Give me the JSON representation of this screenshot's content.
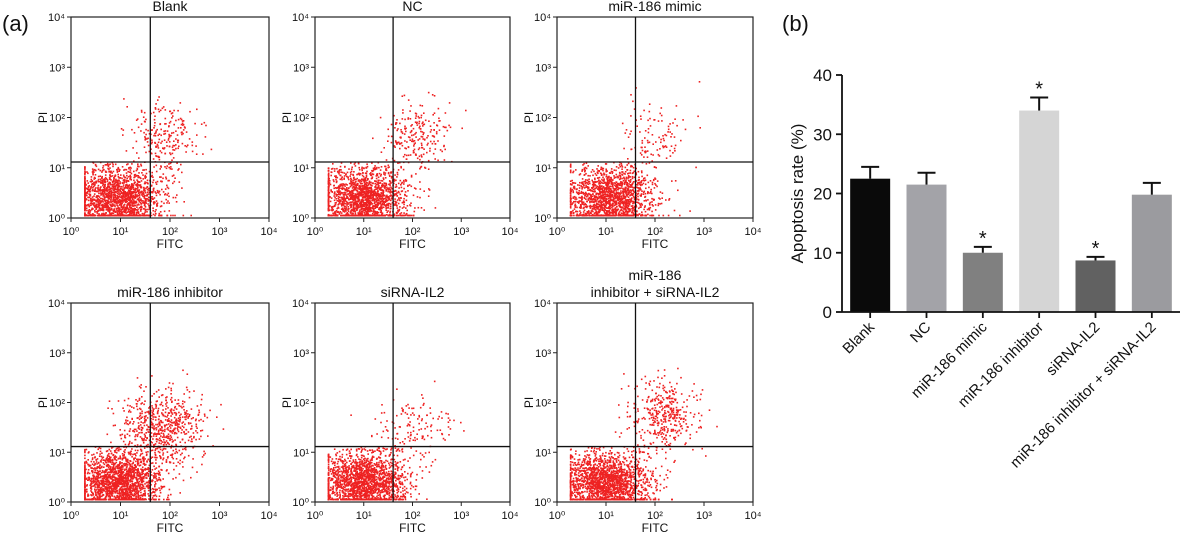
{
  "panel_a_label": "(a)",
  "panel_b_label": "(b)",
  "chart_data": [
    {
      "type": "scatter",
      "scale": "log",
      "title_lines": [
        "Blank"
      ],
      "xlabel": "FITC",
      "ylabel": "PI",
      "xlim": [
        1,
        10000
      ],
      "ylim": [
        1,
        10000
      ],
      "x_ticks": [
        1,
        10,
        100,
        1000,
        10000
      ],
      "y_ticks": [
        1,
        10,
        100,
        1000,
        10000
      ],
      "gate": {
        "x": 40,
        "y": 13
      },
      "color": "#ee2222",
      "clusters": [
        {
          "center_x": 9,
          "center_y": 2.5,
          "spread_log_x": 0.45,
          "spread_log_y": 0.3,
          "count": 1700,
          "ceiling_y": 13
        },
        {
          "center_x": 80,
          "center_y": 40,
          "spread_log_x": 0.35,
          "spread_log_y": 0.35,
          "count": 230
        }
      ]
    },
    {
      "type": "scatter",
      "scale": "log",
      "title_lines": [
        "NC"
      ],
      "xlabel": "FITC",
      "ylabel": "PI",
      "xlim": [
        1,
        10000
      ],
      "ylim": [
        1,
        10000
      ],
      "x_ticks": [
        1,
        10,
        100,
        1000,
        10000
      ],
      "y_ticks": [
        1,
        10,
        100,
        1000,
        10000
      ],
      "gate": {
        "x": 40,
        "y": 13
      },
      "color": "#ee2222",
      "clusters": [
        {
          "center_x": 10,
          "center_y": 2.5,
          "spread_log_x": 0.45,
          "spread_log_y": 0.3,
          "count": 1700,
          "ceiling_y": 13
        },
        {
          "center_x": 120,
          "center_y": 40,
          "spread_log_x": 0.32,
          "spread_log_y": 0.35,
          "count": 230
        }
      ]
    },
    {
      "type": "scatter",
      "scale": "log",
      "title_lines": [
        "miR-186 mimic"
      ],
      "xlabel": "FITC",
      "ylabel": "PI",
      "xlim": [
        1,
        10000
      ],
      "ylim": [
        1,
        10000
      ],
      "x_ticks": [
        1,
        10,
        100,
        1000,
        10000
      ],
      "y_ticks": [
        1,
        10,
        100,
        1000,
        10000
      ],
      "gate": {
        "x": 40,
        "y": 13
      },
      "color": "#ee2222",
      "clusters": [
        {
          "center_x": 12,
          "center_y": 2.5,
          "spread_log_x": 0.45,
          "spread_log_y": 0.3,
          "count": 1600,
          "ceiling_y": 13
        },
        {
          "center_x": 110,
          "center_y": 35,
          "spread_log_x": 0.35,
          "spread_log_y": 0.35,
          "count": 110
        }
      ]
    },
    {
      "type": "scatter",
      "scale": "log",
      "title_lines": [
        "miR-186 inhibitor"
      ],
      "xlabel": "FITC",
      "ylabel": "PI",
      "xlim": [
        1,
        10000
      ],
      "ylim": [
        1,
        10000
      ],
      "x_ticks": [
        1,
        10,
        100,
        1000,
        10000
      ],
      "y_ticks": [
        1,
        10,
        100,
        1000,
        10000
      ],
      "gate": {
        "x": 40,
        "y": 13
      },
      "color": "#ee2222",
      "clusters": [
        {
          "center_x": 9,
          "center_y": 2.5,
          "spread_log_x": 0.4,
          "spread_log_y": 0.3,
          "count": 1800,
          "ceiling_y": 13
        },
        {
          "center_x": 70,
          "center_y": 30,
          "spread_log_x": 0.42,
          "spread_log_y": 0.38,
          "count": 650
        }
      ]
    },
    {
      "type": "scatter",
      "scale": "log",
      "title_lines": [
        "siRNA-IL2"
      ],
      "xlabel": "FITC",
      "ylabel": "PI",
      "xlim": [
        1,
        10000
      ],
      "ylim": [
        1,
        10000
      ],
      "x_ticks": [
        1,
        10,
        100,
        1000,
        10000
      ],
      "y_ticks": [
        1,
        10,
        100,
        1000,
        10000
      ],
      "gate": {
        "x": 40,
        "y": 13
      },
      "color": "#ee2222",
      "clusters": [
        {
          "center_x": 10,
          "center_y": 2.5,
          "spread_log_x": 0.45,
          "spread_log_y": 0.3,
          "count": 1800,
          "ceiling_y": 13
        },
        {
          "center_x": 110,
          "center_y": 30,
          "spread_log_x": 0.4,
          "spread_log_y": 0.35,
          "count": 140
        }
      ]
    },
    {
      "type": "scatter",
      "scale": "log",
      "title_lines": [
        "miR-186",
        "inhibitor + siRNA-IL2"
      ],
      "xlabel": "FITC",
      "ylabel": "PI",
      "xlim": [
        1,
        10000
      ],
      "ylim": [
        1,
        10000
      ],
      "x_ticks": [
        1,
        10,
        100,
        1000,
        10000
      ],
      "y_ticks": [
        1,
        10,
        100,
        1000,
        10000
      ],
      "gate": {
        "x": 40,
        "y": 13
      },
      "color": "#ee2222",
      "clusters": [
        {
          "center_x": 10,
          "center_y": 2.5,
          "spread_log_x": 0.45,
          "spread_log_y": 0.3,
          "count": 1800,
          "ceiling_y": 13
        },
        {
          "center_x": 150,
          "center_y": 60,
          "spread_log_x": 0.35,
          "spread_log_y": 0.35,
          "count": 380
        }
      ]
    },
    {
      "type": "bar",
      "categories": [
        "Blank",
        "NC",
        "miR-186 mimic",
        "miR-186 inhibitor",
        "siRNA-IL2",
        "miR-186 inhibitor + siRNA-IL2"
      ],
      "values": [
        22.5,
        21.5,
        10.0,
        34.0,
        8.7,
        19.8
      ],
      "errors": [
        2.0,
        2.0,
        1.0,
        2.2,
        0.6,
        2.0
      ],
      "significance": [
        "",
        "",
        "*",
        "*",
        "*",
        ""
      ],
      "colors": [
        "#0a0a0a",
        "#a3a3a8",
        "#808080",
        "#d5d5d5",
        "#616161",
        "#9b9b9f"
      ],
      "ylabel": "Apoptosis rate (%)",
      "xlabel": "",
      "ylim": [
        0,
        40
      ],
      "y_ticks": [
        0,
        10,
        20,
        30,
        40
      ]
    }
  ]
}
